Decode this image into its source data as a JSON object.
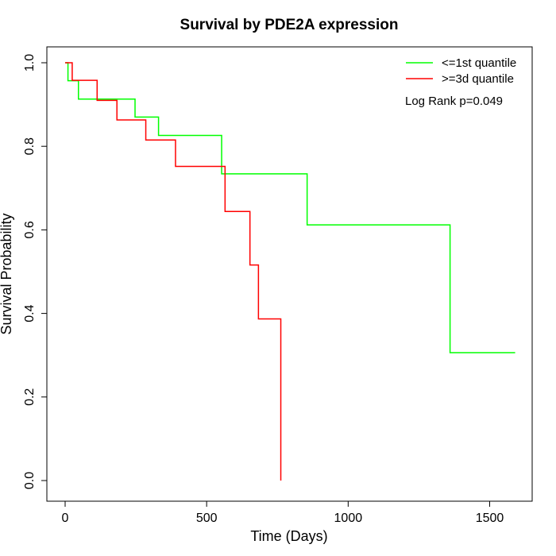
{
  "chart_data": {
    "type": "line",
    "title": "Survival by PDE2A expression",
    "xlabel": "Time (Days)",
    "ylabel": "Survival Probability",
    "xlim": [
      0,
      1600
    ],
    "ylim": [
      0,
      1.0
    ],
    "x_ticks": [
      0,
      500,
      1000,
      1500
    ],
    "x_tick_labels": [
      "0",
      "500",
      "1000",
      "1500"
    ],
    "y_ticks": [
      0.0,
      0.2,
      0.4,
      0.6,
      0.8,
      1.0
    ],
    "y_tick_labels": [
      "0.0",
      "0.2",
      "0.4",
      "0.6",
      "0.8",
      "1.0"
    ],
    "grid": false,
    "legend_position": "top-right",
    "annotation": "Log Rank p=0.049",
    "series": [
      {
        "name": "<=1st quantile",
        "color": "#00ff00",
        "step": true,
        "x": [
          0,
          10,
          47,
          247,
          330,
          553,
          855,
          1360,
          1590
        ],
        "y": [
          1.0,
          0.957,
          0.913,
          0.87,
          0.826,
          0.734,
          0.612,
          0.306,
          0.306
        ]
      },
      {
        "name": ">=3d quantile",
        "color": "#ff0000",
        "step": true,
        "x": [
          0,
          25,
          113,
          183,
          285,
          390,
          565,
          653,
          683,
          762,
          762
        ],
        "y": [
          1.0,
          0.958,
          0.91,
          0.863,
          0.815,
          0.752,
          0.644,
          0.516,
          0.387,
          0.194,
          0.0
        ]
      }
    ]
  }
}
